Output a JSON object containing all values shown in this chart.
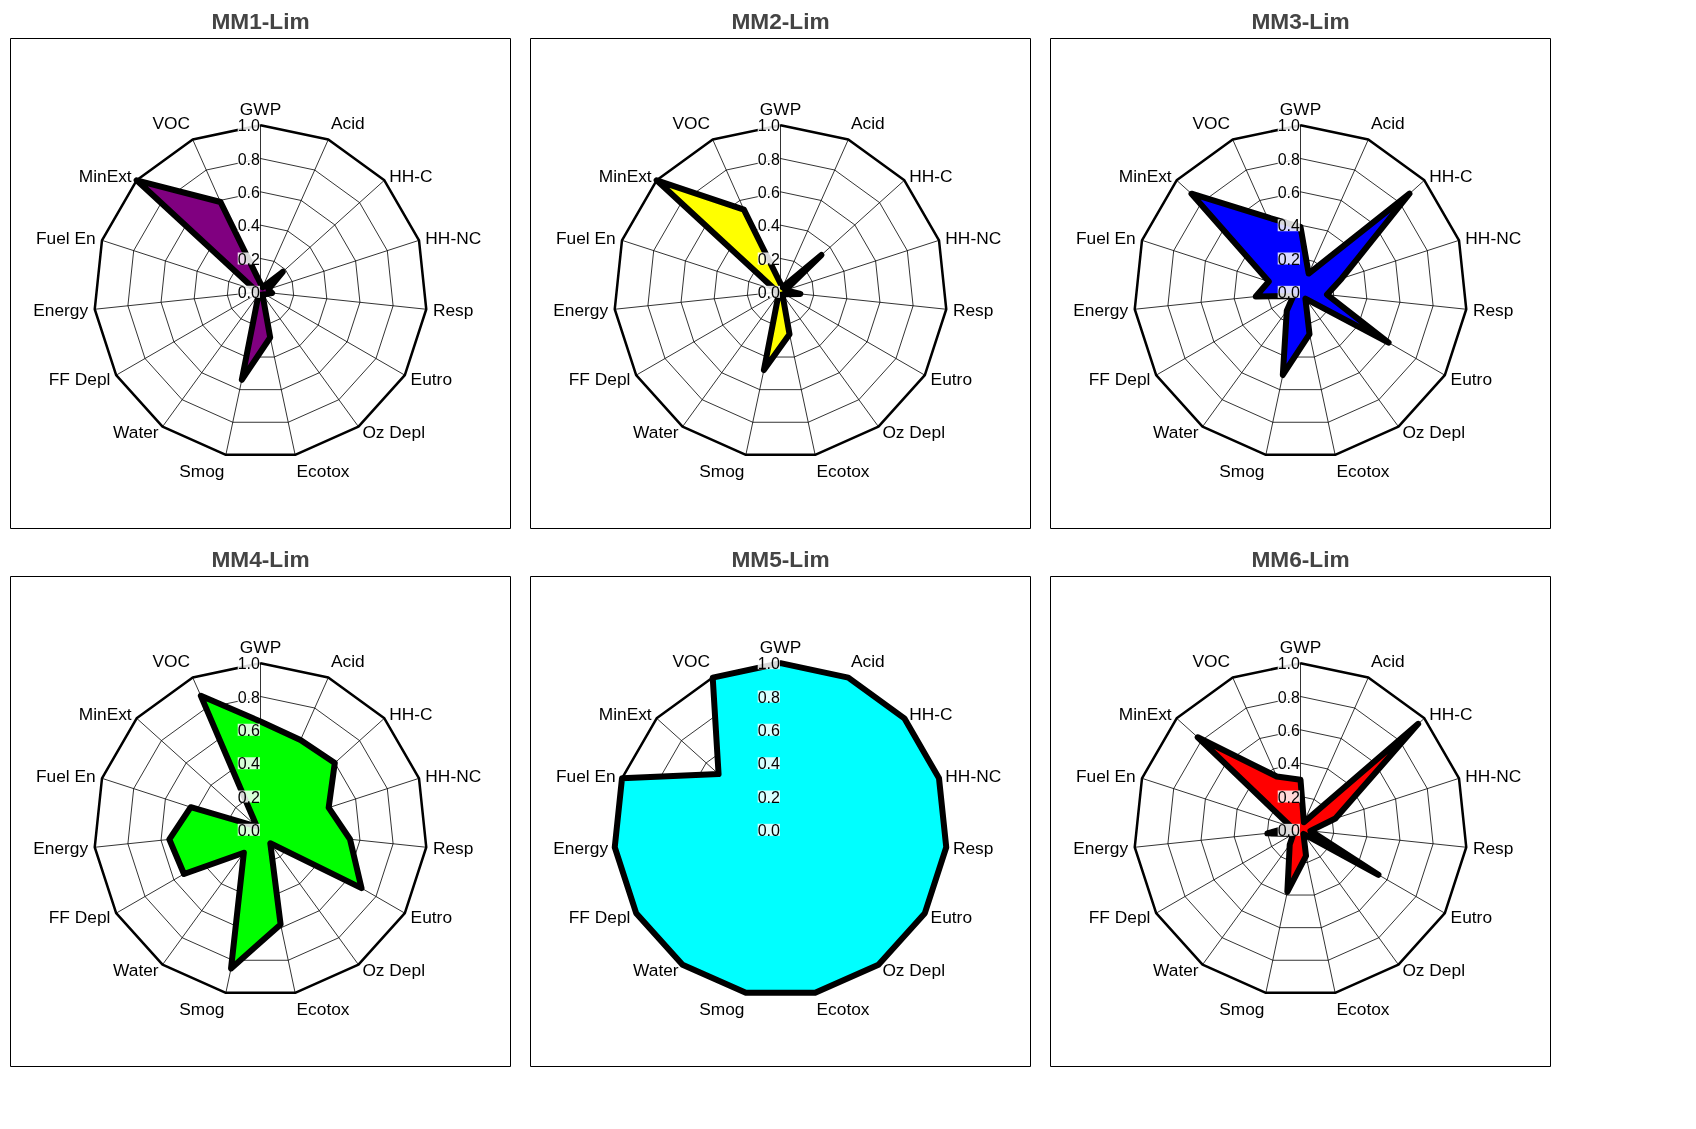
{
  "chart_data": [
    {
      "type": "radar",
      "title": "MM1-Lim",
      "categories": [
        "GWP",
        "Acid",
        "HH-C",
        "HH-NC",
        "Resp",
        "Eutro",
        "Oz Depl",
        "Ecotox",
        "Smog",
        "Water",
        "FF Depl",
        "Energy",
        "Fuel En",
        "MinExt",
        "VOC"
      ],
      "ylim": [
        0,
        1
      ],
      "yticks": [
        {
          "value": 0,
          "label": "0.0"
        },
        {
          "value": 0.2,
          "label": "0.2"
        },
        {
          "value": 0.4,
          "label": "0.4"
        },
        {
          "value": 0.6,
          "label": "0.6"
        },
        {
          "value": 0.8,
          "label": "0.8"
        },
        {
          "value": 1,
          "label": "1.0"
        }
      ],
      "grid": true,
      "line_style": "solid",
      "marker": "none",
      "series": [
        {
          "color": "#800080",
          "values": [
            0.05,
            0.03,
            0.18,
            0.05,
            0.07,
            0.03,
            0.02,
            0.28,
            0.54,
            0.02,
            0.02,
            0.02,
            0.03,
            1.0,
            0.59
          ]
        }
      ]
    },
    {
      "type": "radar",
      "title": "MM2-Lim",
      "categories": [
        "GWP",
        "Acid",
        "HH-C",
        "HH-NC",
        "Resp",
        "Eutro",
        "Oz Depl",
        "Ecotox",
        "Smog",
        "Water",
        "FF Depl",
        "Energy",
        "Fuel En",
        "MinExt",
        "VOC"
      ],
      "ylim": [
        0,
        1
      ],
      "yticks": [
        {
          "value": 0,
          "label": "0.0"
        },
        {
          "value": 0.2,
          "label": "0.2"
        },
        {
          "value": 0.4,
          "label": "0.4"
        },
        {
          "value": 0.6,
          "label": "0.6"
        },
        {
          "value": 0.8,
          "label": "0.8"
        },
        {
          "value": 1,
          "label": "1.0"
        }
      ],
      "grid": true,
      "line_style": "solid",
      "marker": "none",
      "series": [
        {
          "color": "#ffff00",
          "values": [
            0.05,
            0.03,
            0.33,
            0.03,
            0.12,
            0.03,
            0.02,
            0.26,
            0.48,
            0.02,
            0.02,
            0.02,
            0.03,
            1.0,
            0.54
          ]
        }
      ]
    },
    {
      "type": "radar",
      "title": "MM3-Lim",
      "categories": [
        "GWP",
        "Acid",
        "HH-C",
        "HH-NC",
        "Resp",
        "Eutro",
        "Oz Depl",
        "Ecotox",
        "Smog",
        "Water",
        "FF Depl",
        "Energy",
        "Fuel En",
        "MinExt",
        "VOC"
      ],
      "ylim": [
        0,
        1
      ],
      "yticks": [
        {
          "value": 0,
          "label": "0.0"
        },
        {
          "value": 0.2,
          "label": "0.2"
        },
        {
          "value": 0.4,
          "label": "0.4"
        },
        {
          "value": 0.6,
          "label": "0.6"
        },
        {
          "value": 0.8,
          "label": "0.8"
        },
        {
          "value": 1,
          "label": "1.0"
        }
      ],
      "grid": true,
      "line_style": "solid",
      "marker": "none",
      "series": [
        {
          "color": "#0000ff",
          "values": [
            0.39,
            0.12,
            0.88,
            0.26,
            0.16,
            0.61,
            0.05,
            0.26,
            0.51,
            0.14,
            0.05,
            0.27,
            0.2,
            0.88,
            0.49
          ]
        }
      ]
    },
    {
      "type": "radar",
      "title": "MM4-Lim",
      "categories": [
        "GWP",
        "Acid",
        "HH-C",
        "HH-NC",
        "Resp",
        "Eutro",
        "Oz Depl",
        "Ecotox",
        "Smog",
        "Water",
        "FF Depl",
        "Energy",
        "Fuel En",
        "MinExt",
        "VOC"
      ],
      "ylim": [
        0,
        1
      ],
      "yticks": [
        {
          "value": 0,
          "label": "0.0"
        },
        {
          "value": 0.2,
          "label": "0.2"
        },
        {
          "value": 0.4,
          "label": "0.4"
        },
        {
          "value": 0.6,
          "label": "0.6"
        },
        {
          "value": 0.8,
          "label": "0.8"
        },
        {
          "value": 1,
          "label": "1.0"
        }
      ],
      "grid": true,
      "line_style": "solid",
      "marker": "none",
      "series": [
        {
          "color": "#00ff00",
          "values": [
            0.65,
            0.59,
            0.6,
            0.43,
            0.54,
            0.7,
            0.1,
            0.58,
            0.85,
            0.17,
            0.53,
            0.55,
            0.44,
            0.03,
            0.88
          ]
        }
      ]
    },
    {
      "type": "radar",
      "title": "MM5-Lim",
      "categories": [
        "GWP",
        "Acid",
        "HH-C",
        "HH-NC",
        "Resp",
        "Eutro",
        "Oz Depl",
        "Ecotox",
        "Smog",
        "Water",
        "FF Depl",
        "Energy",
        "Fuel En",
        "MinExt",
        "VOC"
      ],
      "ylim": [
        0,
        1
      ],
      "yticks": [
        {
          "value": 0,
          "label": "0.0"
        },
        {
          "value": 0.2,
          "label": "0.2"
        },
        {
          "value": 0.4,
          "label": "0.4"
        },
        {
          "value": 0.6,
          "label": "0.6"
        },
        {
          "value": 0.8,
          "label": "0.8"
        },
        {
          "value": 1,
          "label": "1.0"
        }
      ],
      "grid": true,
      "line_style": "solid",
      "marker": "none",
      "series": [
        {
          "color": "#00ffff",
          "values": [
            1.0,
            1.0,
            1.0,
            1.0,
            1.0,
            1.0,
            1.0,
            1.0,
            1.0,
            1.0,
            1.0,
            1.0,
            1.0,
            0.5,
            1.0
          ]
        }
      ]
    },
    {
      "type": "radar",
      "title": "MM6-Lim",
      "categories": [
        "GWP",
        "Acid",
        "HH-C",
        "HH-NC",
        "Resp",
        "Eutro",
        "Oz Depl",
        "Ecotox",
        "Smog",
        "Water",
        "FF Depl",
        "Energy",
        "Fuel En",
        "MinExt",
        "VOC"
      ],
      "ylim": [
        0,
        1
      ],
      "yticks": [
        {
          "value": 0,
          "label": "0.0"
        },
        {
          "value": 0.2,
          "label": "0.2"
        },
        {
          "value": 0.4,
          "label": "0.4"
        },
        {
          "value": 0.6,
          "label": "0.6"
        },
        {
          "value": 0.8,
          "label": "0.8"
        },
        {
          "value": 1,
          "label": "1.0"
        }
      ],
      "grid": true,
      "line_style": "solid",
      "marker": "none",
      "series": [
        {
          "color": "#ff0000",
          "values": [
            0.3,
            0.05,
            0.95,
            0.22,
            0.06,
            0.54,
            0.03,
            0.16,
            0.38,
            0.11,
            0.05,
            0.2,
            0.06,
            0.83,
            0.35
          ]
        }
      ]
    }
  ]
}
